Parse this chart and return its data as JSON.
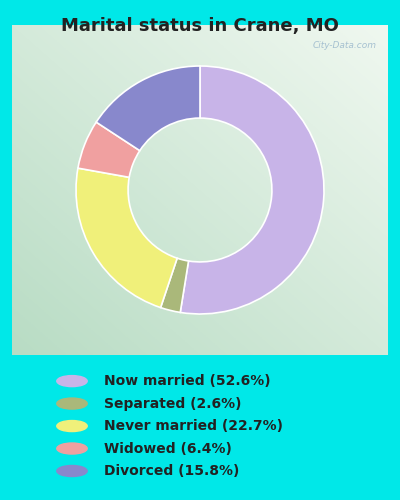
{
  "title": "Marital status in Crane, MO",
  "slices": [
    52.6,
    2.6,
    22.7,
    6.4,
    15.8
  ],
  "labels": [
    "Now married (52.6%)",
    "Separated (2.6%)",
    "Never married (22.7%)",
    "Widowed (6.4%)",
    "Divorced (15.8%)"
  ],
  "colors": [
    "#c8b4e8",
    "#aab87a",
    "#f0f07a",
    "#f0a0a0",
    "#8888cc"
  ],
  "bg_color": "#00e8e8",
  "title_fontsize": 13,
  "legend_fontsize": 10,
  "watermark": "City-Data.com",
  "chart_border_color": "#cccccc",
  "legend_text_color": "#222222",
  "title_color": "#222222"
}
